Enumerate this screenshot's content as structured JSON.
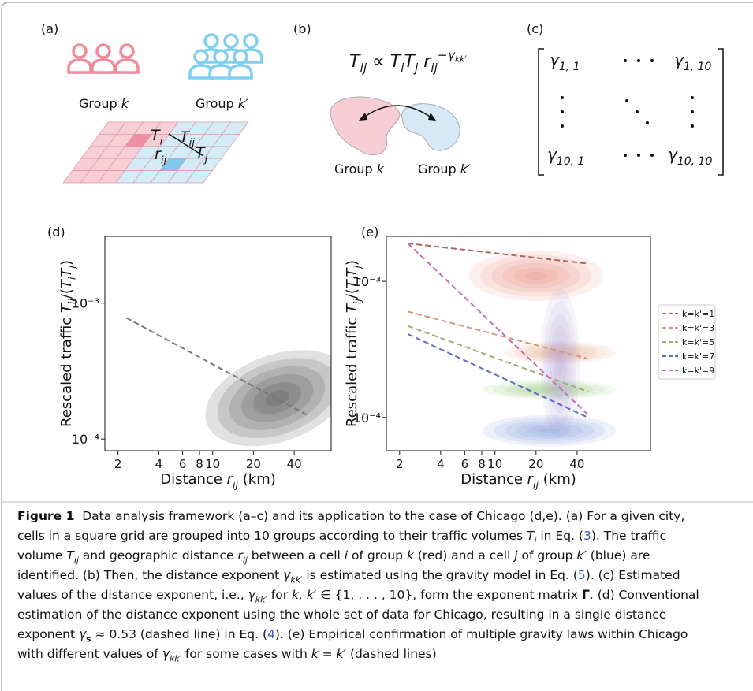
{
  "panels": {
    "a": {
      "label": "(a)",
      "group_k": [
        "Group ",
        {
          "t": "k",
          "s": "i"
        }
      ],
      "group_k2": [
        "Group ",
        {
          "t": "k′",
          "s": "i"
        }
      ],
      "Ti": [
        {
          "t": "T",
          "s": "i"
        },
        {
          "t": "i",
          "s": "sub"
        }
      ],
      "Tij": [
        {
          "t": "T",
          "s": "i"
        },
        {
          "t": "ij",
          "s": "sub"
        }
      ],
      "rij": [
        {
          "t": "r",
          "s": "i"
        },
        {
          "t": "ij",
          "s": "sub"
        }
      ],
      "Tj": [
        {
          "t": "T",
          "s": "i"
        },
        {
          "t": "j",
          "s": "sub"
        }
      ]
    },
    "b": {
      "label": "(b)",
      "formula": [
        {
          "t": "T",
          "s": "i"
        },
        {
          "t": "ij",
          "s": "sub"
        },
        " ∝ ",
        {
          "t": "T",
          "s": "i"
        },
        {
          "t": "i",
          "s": "sub"
        },
        {
          "t": "T",
          "s": "i"
        },
        {
          "t": "j",
          "s": "sub"
        },
        " ",
        {
          "t": "r",
          "s": "i"
        },
        {
          "t": "ij",
          "s": "sub"
        },
        {
          "t": "−γ",
          "s": "sup"
        },
        {
          "t": "kk′",
          "s": "supsub"
        }
      ],
      "group_k": [
        "Group ",
        {
          "t": "k",
          "s": "i"
        }
      ],
      "group_k2": [
        "Group ",
        {
          "t": "k′",
          "s": "i"
        }
      ]
    },
    "c": {
      "label": "(c)",
      "g11": [
        {
          "t": "γ",
          "s": "i"
        },
        {
          "t": "1, 1",
          "s": "sub"
        }
      ],
      "g110": [
        {
          "t": "γ",
          "s": "i"
        },
        {
          "t": "1, 10",
          "s": "sub"
        }
      ],
      "g101": [
        {
          "t": "γ",
          "s": "i"
        },
        {
          "t": "10, 1",
          "s": "sub"
        }
      ],
      "g1010": [
        {
          "t": "γ",
          "s": "i"
        },
        {
          "t": "10, 10",
          "s": "sub"
        }
      ]
    }
  },
  "chart_data": [
    {
      "type": "line",
      "label": "(d)",
      "x_label": [
        "Distance ",
        {
          "t": "r",
          "s": "i"
        },
        {
          "t": "ij",
          "s": "sub"
        },
        " (km)"
      ],
      "y_label": [
        "Rescaled traffic ",
        {
          "t": "T",
          "s": "i"
        },
        {
          "t": "ij",
          "s": "sub"
        },
        "/(",
        {
          "t": "T",
          "s": "i"
        },
        {
          "t": "i",
          "s": "sub"
        },
        {
          "t": "T",
          "s": "i"
        },
        {
          "t": "j",
          "s": "sub"
        },
        ")"
      ],
      "xscale": "log",
      "yscale": "log",
      "xlim": [
        1.6,
        75
      ],
      "ylim": [
        8.2e-05,
        0.0031
      ],
      "xticks": [
        2,
        4,
        6,
        8,
        10,
        20,
        40
      ],
      "yticks": [
        {
          "value": 0.0001,
          "label": "10⁻⁴"
        },
        {
          "value": 0.001,
          "label": "10⁻³"
        }
      ],
      "x": [
        2.3,
        50
      ],
      "series": [
        {
          "color": "#777777",
          "values": [
            0.00078,
            0.00015
          ]
        }
      ],
      "density": [
        {
          "x": 30,
          "y": 0.0002,
          "color": "#2a2a2a"
        }
      ]
    },
    {
      "type": "line",
      "label": "(e)",
      "x_label": [
        "Distance ",
        {
          "t": "r",
          "s": "i"
        },
        {
          "t": "ij",
          "s": "sub"
        },
        " (km)"
      ],
      "y_label": [
        "Rescaled traffic ",
        {
          "t": "T",
          "s": "i"
        },
        {
          "t": "ij",
          "s": "sub"
        },
        "/(",
        {
          "t": "T",
          "s": "i"
        },
        {
          "t": "i",
          "s": "sub"
        },
        {
          "t": "T",
          "s": "i"
        },
        {
          "t": "j",
          "s": "sub"
        },
        ")"
      ],
      "xscale": "log",
      "yscale": "log",
      "xlim": [
        1.6,
        138
      ],
      "ylim": [
        5.7e-05,
        0.00214
      ],
      "xticks": [
        2,
        4,
        6,
        8,
        10,
        20,
        40
      ],
      "yticks": [
        {
          "value": 0.0001,
          "label": "10⁻⁴"
        },
        {
          "value": 0.001,
          "label": "10⁻³"
        }
      ],
      "legend": "outside right",
      "x": [
        2.3,
        48
      ],
      "series": [
        {
          "name": "k=k'=1",
          "color": "#b5615d",
          "values": [
            0.0019,
            0.00135
          ]
        },
        {
          "name": "k=k'=3",
          "color": "#d49a7f",
          "values": [
            0.0006,
            0.00027
          ]
        },
        {
          "name": "k=k'=5",
          "color": "#a3ab78",
          "values": [
            0.00047,
            0.000155
          ]
        },
        {
          "name": "k=k'=7",
          "color": "#5a6fc4",
          "values": [
            0.00041,
            0.0001
          ]
        },
        {
          "name": "k=k'=9",
          "color": "#c16dbf",
          "values": [
            0.0019,
            0.000105
          ]
        }
      ],
      "density": [
        {
          "x": 20,
          "y": 0.0011,
          "color": "#e8796e"
        },
        {
          "x": 30,
          "y": 0.0003,
          "color": "#e8a070"
        },
        {
          "x": 25,
          "y": 0.00016,
          "color": "#8cc46e"
        },
        {
          "x": 25,
          "y": 8e-05,
          "color": "#6f8fd8"
        },
        {
          "x": 30,
          "y": 0.00025,
          "color": "#b09ad8"
        }
      ]
    }
  ],
  "caption": {
    "lines": [
      [
        {
          "t": "Figure 1",
          "s": "b"
        },
        "  Data analysis framework (a–c) and its application to the case of Chicago (d,e). (a) For a given city,"
      ],
      [
        "cells in a square grid are grouped into 10 groups according to their traffic volumes ",
        {
          "t": "T",
          "s": "i"
        },
        {
          "t": "i",
          "s": "sub"
        },
        " in Eq. (",
        {
          "t": "3",
          "s": "link"
        },
        "). The traffic"
      ],
      [
        "volume ",
        {
          "t": "T",
          "s": "i"
        },
        {
          "t": "ij",
          "s": "sub"
        },
        " and geographic distance ",
        {
          "t": "r",
          "s": "i"
        },
        {
          "t": "ij",
          "s": "sub"
        },
        " between a cell ",
        {
          "t": "i",
          "s": "i"
        },
        " of group ",
        {
          "t": "k",
          "s": "i"
        },
        " (red) and a cell ",
        {
          "t": "j",
          "s": "i"
        },
        " of group ",
        {
          "t": "k′",
          "s": "i"
        },
        " (blue) are"
      ],
      [
        "identified. (b) Then, the distance exponent ",
        {
          "t": "γ",
          "s": "i"
        },
        {
          "t": "kk′",
          "s": "sub"
        },
        " is estimated using the gravity model in Eq. (",
        {
          "t": "5",
          "s": "link"
        },
        "). (c) Estimated"
      ],
      [
        "values of the distance exponent, i.e., ",
        {
          "t": "γ",
          "s": "i"
        },
        {
          "t": "kk′",
          "s": "sub"
        },
        " for ",
        {
          "t": "k, k′",
          "s": "i"
        },
        " ∈ {1, . . . , 10}, form the exponent matrix ",
        {
          "t": "Γ",
          "s": "b"
        },
        ". (d) Conventional"
      ],
      [
        "estimation of the distance exponent using the whole set of data for Chicago, resulting in a single distance"
      ],
      [
        "exponent ",
        {
          "t": "γ",
          "s": "i"
        },
        {
          "t": "s",
          "s": "subb"
        },
        " ≈ 0.53 (dashed line) in Eq. (",
        {
          "t": "4",
          "s": "link"
        },
        "). (e) Empirical confirmation of multiple gravity laws within Chicago"
      ],
      [
        "with different values of ",
        {
          "t": "γ",
          "s": "i"
        },
        {
          "t": "kk′",
          "s": "sub"
        },
        " for some cases with ",
        {
          "t": "k",
          "s": "i"
        },
        " = ",
        {
          "t": "k′",
          "s": "i"
        },
        " (dashed lines)"
      ]
    ]
  }
}
